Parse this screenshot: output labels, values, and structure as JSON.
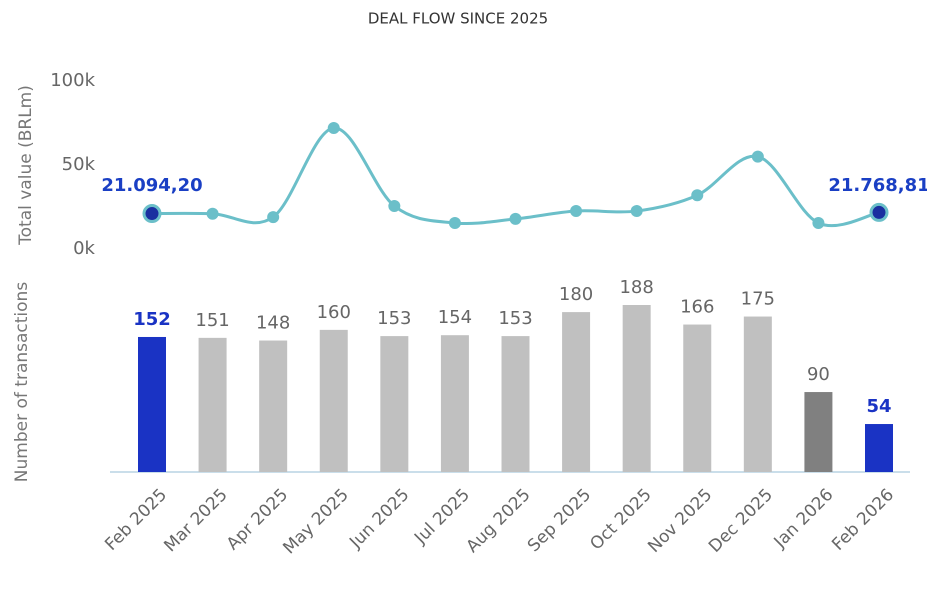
{
  "chart_data": [
    {
      "type": "line",
      "title": "DEAL FLOW SINCE 2025",
      "ylabel": "Total value (BRLm)",
      "categories": [
        "Feb 2025",
        "Mar 2025",
        "Apr 2025",
        "May 2025",
        "Jun 2025",
        "Jul 2025",
        "Aug 2025",
        "Sep 2025",
        "Oct 2025",
        "Nov 2025",
        "Dec 2025",
        "Jan 2026",
        "Feb 2026"
      ],
      "values": [
        21094.2,
        21000,
        19000,
        72000,
        25600,
        15500,
        17900,
        22600,
        22600,
        32000,
        55000,
        15500,
        21768.81
      ],
      "value_labels": [
        "21.094,20",
        null,
        null,
        null,
        null,
        null,
        null,
        null,
        null,
        null,
        null,
        null,
        "21.768,81"
      ],
      "color": "#6bbfc9",
      "highlight_color": "#1a2fa0",
      "label_color": "#1a3fc4",
      "ylim": [
        0,
        100000
      ],
      "yticks": [
        {
          "value": 0,
          "label": "0k"
        },
        {
          "value": 50000,
          "label": "50k"
        },
        {
          "value": 100000,
          "label": "100k"
        }
      ]
    },
    {
      "type": "bar",
      "ylabel": "Number of transactions",
      "categories": [
        "Feb 2025",
        "Mar 2025",
        "Apr 2025",
        "May 2025",
        "Jun 2025",
        "Jul 2025",
        "Aug 2025",
        "Sep 2025",
        "Oct 2025",
        "Nov 2025",
        "Dec 2025",
        "Jan 2026",
        "Feb 2026"
      ],
      "values": [
        152,
        151,
        148,
        160,
        153,
        154,
        153,
        180,
        188,
        166,
        175,
        90,
        54
      ],
      "colors": [
        "#1a33c4",
        "#c0c0c0",
        "#c0c0c0",
        "#c0c0c0",
        "#c0c0c0",
        "#c0c0c0",
        "#c0c0c0",
        "#c0c0c0",
        "#c0c0c0",
        "#c0c0c0",
        "#c0c0c0",
        "#808080",
        "#1a33c4"
      ],
      "highlight_color": "#1a33c4"
    }
  ]
}
